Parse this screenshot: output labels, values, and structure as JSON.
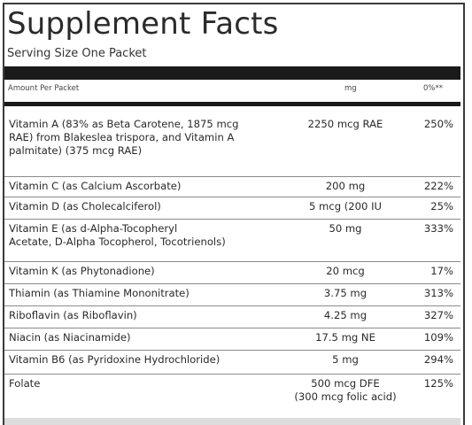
{
  "label": {
    "title": "Supplement Facts",
    "serving_size": "Serving Size One Packet",
    "columns": {
      "amount_per": "Amount Per Packet",
      "unit": "mg",
      "daily_value": "0%**"
    },
    "rows": [
      {
        "name": "Vitamin A (83% as Beta Carotene, 1875 mcg\n   RAE) from Blakeslea trispora, and Vitamin A\n   palmitate) (375 mcg RAE)",
        "amount": "2250 mcg RAE",
        "dv": "250%"
      },
      {
        "name": "Vitamin C (as Calcium Ascorbate)",
        "amount": "200 mg",
        "dv": "222%"
      },
      {
        "name": "Vitamin D (as Cholecalciferol)",
        "amount": "5 mcg (200 IU",
        "dv": "25%"
      },
      {
        "name": "Vitamin E (as d-Alpha-Tocopheryl\n   Acetate, D-Alpha Tocopherol, Tocotrienols)",
        "amount": "50 mg",
        "dv": "333%"
      },
      {
        "name": "Vitamin K (as Phytonadione)",
        "amount": "20 mcg",
        "dv": "17%"
      },
      {
        "name": "Thiamin (as Thiamine Mononitrate)",
        "amount": "3.75 mg",
        "dv": "313%"
      },
      {
        "name": "Riboflavin (as Riboflavin)",
        "amount": "4.25 mg",
        "dv": "327%"
      },
      {
        "name": "Niacin (as Niacinamide)",
        "amount": "17.5 mg NE",
        "dv": "109%"
      },
      {
        "name": "Vitamin B6 (as Pyridoxine Hydrochloride)",
        "amount": "5 mg",
        "dv": "294%"
      },
      {
        "name": "Folate",
        "amount": "500 mcg DFE\n(300 mcg folic acid)",
        "dv": "125%"
      }
    ]
  }
}
